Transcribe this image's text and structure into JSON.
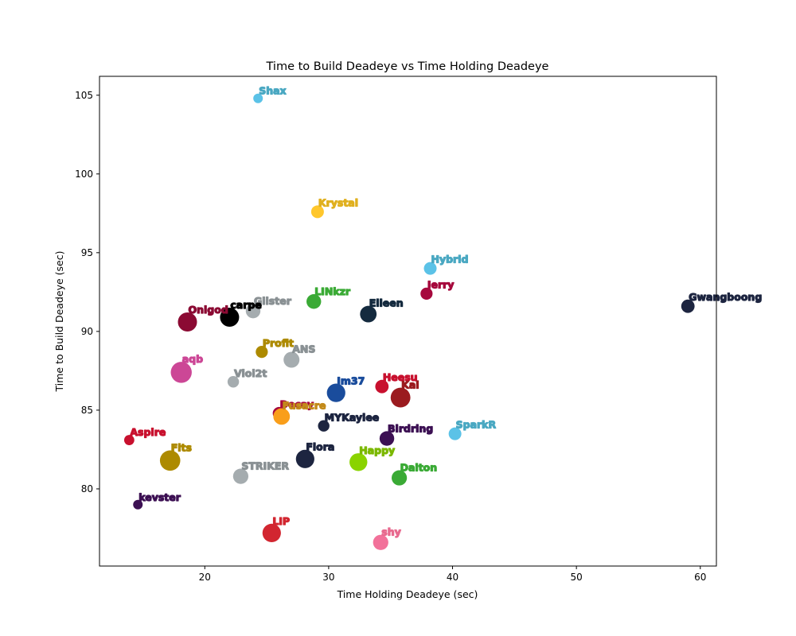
{
  "chart_data": {
    "type": "scatter",
    "title": "Time to Build Deadeye vs Time Holding Deadeye",
    "xlabel": "Time Holding Deadeye (sec)",
    "ylabel": "Time to Build Deadeye (sec)",
    "xlim": [
      11.5,
      61.3
    ],
    "ylim": [
      75.1,
      106.2
    ],
    "xticks": [
      20,
      30,
      40,
      50,
      60
    ],
    "yticks": [
      80,
      85,
      90,
      95,
      100,
      105
    ],
    "grid": false,
    "points": [
      {
        "label": "Shax",
        "x": 24.3,
        "y": 104.8,
        "size": 0.25,
        "color": "#5bc2e7",
        "label_color": "#4aa8c2"
      },
      {
        "label": "Krystal",
        "x": 29.1,
        "y": 97.6,
        "size": 0.5,
        "color": "#ffc72c",
        "label_color": "#e0b01f"
      },
      {
        "label": "Hybrid",
        "x": 38.2,
        "y": 94.0,
        "size": 0.5,
        "color": "#5bc2e7",
        "label_color": "#4aa8c2"
      },
      {
        "label": "Jerry",
        "x": 37.9,
        "y": 92.4,
        "size": 0.45,
        "color": "#a6093d",
        "label_color": "#a6093d"
      },
      {
        "label": "Gwangboong",
        "x": 59.0,
        "y": 91.6,
        "size": 0.55,
        "color": "#1d2540",
        "label_color": "#1d2540"
      },
      {
        "label": "LINkzr",
        "x": 28.8,
        "y": 91.9,
        "size": 0.65,
        "color": "#3aaa35",
        "label_color": "#3aaa35"
      },
      {
        "label": "Elleen",
        "x": 33.2,
        "y": 91.1,
        "size": 0.8,
        "color": "#142a3e",
        "label_color": "#142a3e"
      },
      {
        "label": "Glister",
        "x": 23.9,
        "y": 91.3,
        "size": 0.65,
        "color": "#a5acaf",
        "label_color": "#8a9194"
      },
      {
        "label": "carpe",
        "x": 22.0,
        "y": 90.9,
        "size": 1.0,
        "color": "#000000",
        "label_color": "#000000"
      },
      {
        "label": "Onigod",
        "x": 18.6,
        "y": 90.6,
        "size": 1.0,
        "color": "#8b0a33",
        "label_color": "#8b0a33"
      },
      {
        "label": "Profit",
        "x": 24.6,
        "y": 88.7,
        "size": 0.45,
        "color": "#ad8a00",
        "label_color": "#ad8a00"
      },
      {
        "label": "ANS",
        "x": 27.0,
        "y": 88.2,
        "size": 0.75,
        "color": "#a5acaf",
        "label_color": "#8a9194"
      },
      {
        "label": "aqb",
        "x": 18.1,
        "y": 87.4,
        "size": 1.15,
        "color": "#cc4796",
        "label_color": "#cc4796"
      },
      {
        "label": "Viol2t",
        "x": 22.3,
        "y": 86.8,
        "size": 0.4,
        "color": "#a5acaf",
        "label_color": "#8a9194"
      },
      {
        "label": "Im37",
        "x": 30.6,
        "y": 86.1,
        "size": 0.95,
        "color": "#1a4c9c",
        "label_color": "#1a4c9c"
      },
      {
        "label": "Heesu",
        "x": 34.3,
        "y": 86.5,
        "size": 0.55,
        "color": "#c8102e",
        "label_color": "#c8102e"
      },
      {
        "label": "Kai",
        "x": 35.8,
        "y": 85.8,
        "size": 1.05,
        "color": "#9b1b1f",
        "label_color": "#9b1b1f"
      },
      {
        "label": "Decay",
        "x": 26.0,
        "y": 84.8,
        "size": 0.5,
        "color": "#a6093d",
        "label_color": "#a6093d"
      },
      {
        "label": "Fusacre",
        "x": 26.2,
        "y": 84.6,
        "size": 0.8,
        "color": "#f99e1a",
        "label_color": "#c38a1a"
      },
      {
        "label": "MYKaylee",
        "x": 29.6,
        "y": 84.0,
        "size": 0.4,
        "color": "#1d2540",
        "label_color": "#1d2540"
      },
      {
        "label": "Aspire",
        "x": 13.9,
        "y": 83.1,
        "size": 0.3,
        "color": "#c8102e",
        "label_color": "#c8102e"
      },
      {
        "label": "SparkR",
        "x": 40.2,
        "y": 83.5,
        "size": 0.5,
        "color": "#5bc2e7",
        "label_color": "#4aa8c2"
      },
      {
        "label": "Birdring",
        "x": 34.7,
        "y": 83.2,
        "size": 0.65,
        "color": "#3c1053",
        "label_color": "#3c1053"
      },
      {
        "label": "Fits",
        "x": 17.2,
        "y": 81.8,
        "size": 1.1,
        "color": "#ad8a00",
        "label_color": "#ad8a00"
      },
      {
        "label": "Flora",
        "x": 28.1,
        "y": 81.9,
        "size": 0.95,
        "color": "#1d2540",
        "label_color": "#1d2540"
      },
      {
        "label": "Happy",
        "x": 32.4,
        "y": 81.7,
        "size": 0.9,
        "color": "#8ad300",
        "label_color": "#7bb800"
      },
      {
        "label": "STRIKER",
        "x": 22.9,
        "y": 80.8,
        "size": 0.7,
        "color": "#a5acaf",
        "label_color": "#8a9194"
      },
      {
        "label": "Dalton",
        "x": 35.7,
        "y": 80.7,
        "size": 0.7,
        "color": "#3aaa35",
        "label_color": "#3aaa35"
      },
      {
        "label": "kevster",
        "x": 14.6,
        "y": 79.0,
        "size": 0.25,
        "color": "#3c1053",
        "label_color": "#3c1053"
      },
      {
        "label": "LIP",
        "x": 25.4,
        "y": 77.2,
        "size": 0.95,
        "color": "#d22630",
        "label_color": "#d22630"
      },
      {
        "label": "shy",
        "x": 34.2,
        "y": 76.6,
        "size": 0.7,
        "color": "#f2719a",
        "label_color": "#e86a8f"
      }
    ]
  }
}
